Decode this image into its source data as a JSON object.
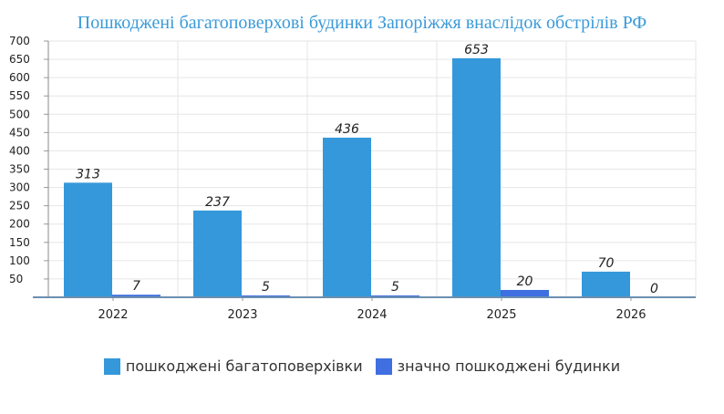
{
  "chart_data": {
    "type": "bar",
    "title": "Пошкоджені багатоповерхові будинки Запоріжжя внаслідок обстрілів РФ",
    "xlabel": "",
    "ylabel": "",
    "categories": [
      "2022",
      "2023",
      "2024",
      "2025",
      "2026"
    ],
    "series": [
      {
        "name": "пошкоджені багатоповерхівки",
        "values": [
          313,
          237,
          436,
          653,
          70
        ],
        "color": "#3498db"
      },
      {
        "name": "значно пошкоджені будинки",
        "values": [
          7,
          5,
          5,
          20,
          0
        ],
        "color": "#3f6fe0"
      }
    ],
    "ylim": [
      0,
      700
    ],
    "yticks": [
      50,
      100,
      150,
      200,
      250,
      300,
      350,
      400,
      450,
      500,
      550,
      600,
      650,
      700
    ],
    "grid": true,
    "legend": "bottom-center",
    "data_labels": true
  }
}
